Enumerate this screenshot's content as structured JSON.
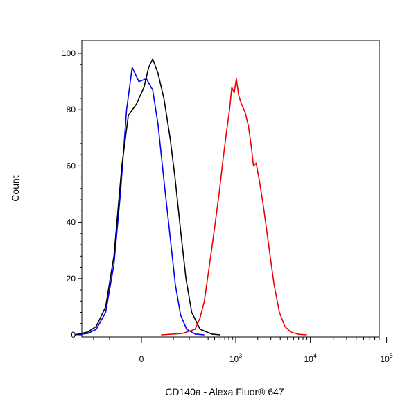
{
  "chart_data": {
    "type": "line",
    "title": "",
    "xlabel": "CD140a - Alexa Fluor® 647",
    "ylabel": "Count",
    "x_scale": "biexponential",
    "ylim": [
      0,
      100
    ],
    "y_ticks": [
      0,
      20,
      40,
      60,
      80,
      100
    ],
    "x_ticks": [
      {
        "value": 0,
        "base": "0",
        "exp": ""
      },
      {
        "value": 1000,
        "base": "10",
        "exp": "3"
      },
      {
        "value": 10000,
        "base": "10",
        "exp": "4"
      },
      {
        "value": 100000,
        "base": "10",
        "exp": "5"
      }
    ],
    "grid": false,
    "legend": "none",
    "series": [
      {
        "color": "#0000ee",
        "points": [
          [
            -400,
            0
          ],
          [
            -250,
            0.5
          ],
          [
            -180,
            2
          ],
          [
            -120,
            8
          ],
          [
            -80,
            25
          ],
          [
            -55,
            50
          ],
          [
            -35,
            80
          ],
          [
            -20,
            95
          ],
          [
            -5,
            90
          ],
          [
            10,
            91
          ],
          [
            25,
            87
          ],
          [
            40,
            75
          ],
          [
            60,
            55
          ],
          [
            85,
            35
          ],
          [
            110,
            18
          ],
          [
            140,
            7
          ],
          [
            180,
            2
          ],
          [
            250,
            0.3
          ],
          [
            350,
            0
          ]
        ]
      },
      {
        "color": "#000000",
        "points": [
          [
            -400,
            0
          ],
          [
            -250,
            1
          ],
          [
            -180,
            3
          ],
          [
            -120,
            10
          ],
          [
            -80,
            28
          ],
          [
            -50,
            60
          ],
          [
            -30,
            78
          ],
          [
            -10,
            82
          ],
          [
            5,
            88
          ],
          [
            15,
            95
          ],
          [
            25,
            98
          ],
          [
            40,
            93
          ],
          [
            60,
            84
          ],
          [
            85,
            70
          ],
          [
            110,
            55
          ],
          [
            140,
            37
          ],
          [
            175,
            20
          ],
          [
            220,
            8
          ],
          [
            300,
            2
          ],
          [
            450,
            0.3
          ],
          [
            600,
            0
          ]
        ]
      },
      {
        "color": "#ee0000",
        "points": [
          [
            50,
            0
          ],
          [
            150,
            0.5
          ],
          [
            250,
            2
          ],
          [
            300,
            6
          ],
          [
            350,
            12
          ],
          [
            420,
            25
          ],
          [
            500,
            38
          ],
          [
            580,
            50
          ],
          [
            660,
            62
          ],
          [
            740,
            72
          ],
          [
            820,
            80
          ],
          [
            880,
            88
          ],
          [
            950,
            86
          ],
          [
            1020,
            91
          ],
          [
            1100,
            85
          ],
          [
            1200,
            82
          ],
          [
            1350,
            79
          ],
          [
            1500,
            74
          ],
          [
            1650,
            66
          ],
          [
            1750,
            60
          ],
          [
            1900,
            61
          ],
          [
            2100,
            55
          ],
          [
            2400,
            45
          ],
          [
            2800,
            32
          ],
          [
            3300,
            18
          ],
          [
            3900,
            8
          ],
          [
            4600,
            3
          ],
          [
            5500,
            1
          ],
          [
            7000,
            0.2
          ],
          [
            9000,
            0
          ]
        ]
      }
    ]
  }
}
